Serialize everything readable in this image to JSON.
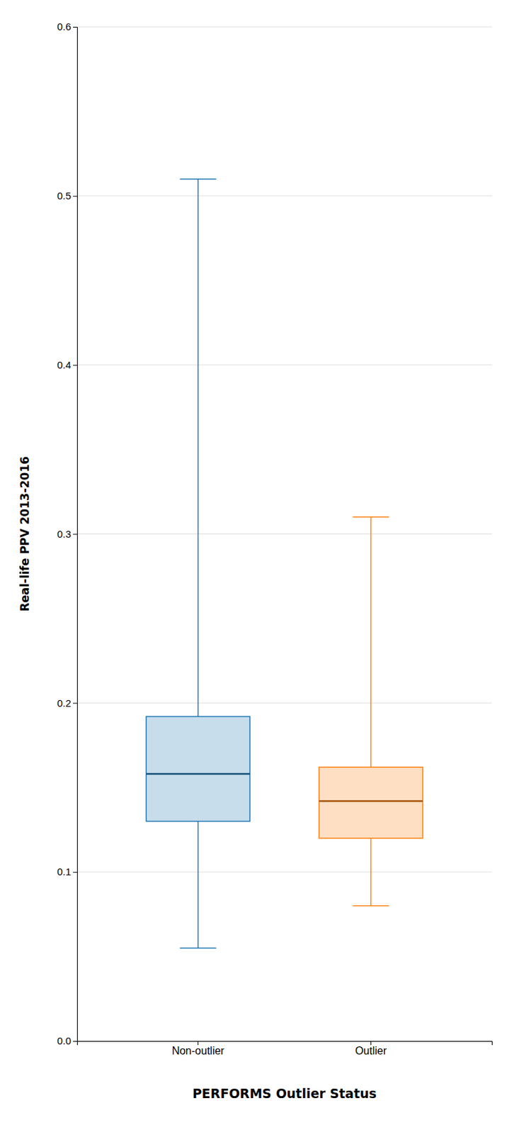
{
  "chart_data": {
    "type": "box",
    "ylabel": "Real-life PPV 2013-2016",
    "xlabel": "PERFORMS Outlier Status",
    "categories": [
      "Non-outlier",
      "Outlier"
    ],
    "boxes": [
      {
        "whisker_low": 0.055,
        "q1": 0.13,
        "median": 0.158,
        "q3": 0.192,
        "whisker_high": 0.51
      },
      {
        "whisker_low": 0.08,
        "q1": 0.12,
        "median": 0.142,
        "q3": 0.162,
        "whisker_high": 0.31
      }
    ],
    "ylim": [
      0.0,
      0.6
    ],
    "yticks": [
      {
        "value": 0.0,
        "label": "0.0"
      },
      0.1,
      0.2,
      0.3,
      0.4,
      0.5,
      0.6
    ],
    "grid": true
  }
}
